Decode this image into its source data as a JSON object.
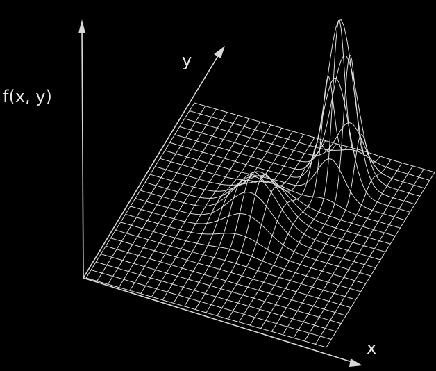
{
  "axes": {
    "z_label": "f(x, y)",
    "y_label": "y",
    "x_label": "x"
  }
}
